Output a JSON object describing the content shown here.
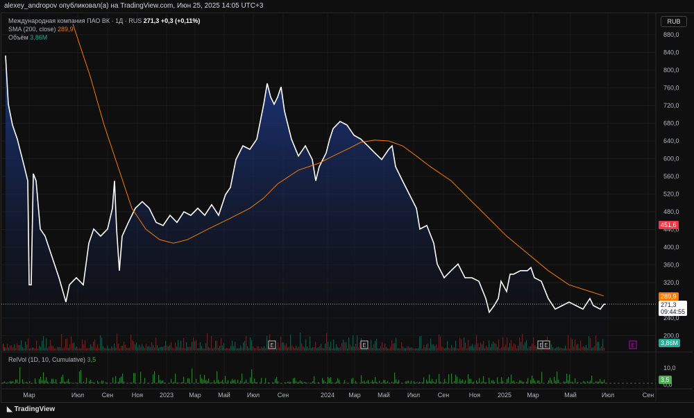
{
  "header": {
    "published": "alexey_andropov опубликовал(а) на TradingView.com, Июн 25, 2025 14:05 UTC+3"
  },
  "legend": {
    "symbol": "Международная компания ПАО ВК · 1Д · RUS",
    "last": "271,3",
    "change": "+0,3 (+0,11%)",
    "sma_label": "SMA (200, close)",
    "sma_value": "289,9",
    "vol_label": "Объём",
    "vol_value": "3,86M",
    "relvol_label": "RelVol (1D, 10, Cumulative)",
    "relvol_value": "3,5"
  },
  "currency": "RUB",
  "tags": {
    "high": "451,6",
    "sma": "289,9",
    "price": "271,3",
    "countdown": "09:44:55",
    "volume": "3,86M",
    "relvol": "3,5",
    "earnings": "E"
  },
  "footer": {
    "brand": "TradingView"
  },
  "colors": {
    "price": "#ffffff",
    "sma": "#f57c00",
    "area_top": "#1e3a8a",
    "high_tag": "#f23645",
    "vol_tag": "#22ab94",
    "relvol_tag": "#4caf50"
  },
  "chart_data": {
    "type": "line",
    "title": "Международная компания ПАО ВК · 1Д",
    "ylim": [
      200,
      900
    ],
    "y_ticks": [
      "880,0",
      "840,0",
      "800,0",
      "760,0",
      "720,0",
      "680,0",
      "640,0",
      "600,0",
      "560,0",
      "520,0",
      "480,0",
      "440,0",
      "400,0",
      "360,0",
      "320,0",
      "240,0",
      "200,0"
    ],
    "relvol_ticks": [
      "10,0",
      "0,0"
    ],
    "x_ticks": [
      {
        "m": 2.1,
        "label": "Мар"
      },
      {
        "m": 5.6,
        "label": "Июл"
      },
      {
        "m": 7.75,
        "label": "Сен"
      },
      {
        "m": 9.9,
        "label": "Ноя"
      },
      {
        "m": 12,
        "label": "2023"
      },
      {
        "m": 14.05,
        "label": "Мар"
      },
      {
        "m": 16.15,
        "label": "Май"
      },
      {
        "m": 18.25,
        "label": "Июл"
      },
      {
        "m": 20.4,
        "label": "Сен"
      },
      {
        "m": 23.6,
        "label": "2024"
      },
      {
        "m": 25.55,
        "label": "Мар"
      },
      {
        "m": 27.65,
        "label": "Май"
      },
      {
        "m": 29.8,
        "label": "Июл"
      },
      {
        "m": 31.95,
        "label": "Сен"
      },
      {
        "m": 34.2,
        "label": "Ноя"
      },
      {
        "m": 36.35,
        "label": "2025"
      },
      {
        "m": 38.4,
        "label": "Мар"
      },
      {
        "m": 41.1,
        "label": "Май"
      },
      {
        "m": 43.8,
        "label": "Июл"
      },
      {
        "m": 46.7,
        "label": "Сен"
      }
    ],
    "series": [
      {
        "name": "Price",
        "values": [
          [
            0.4,
            833
          ],
          [
            0.6,
            723
          ],
          [
            0.9,
            676
          ],
          [
            1.25,
            644
          ],
          [
            1.75,
            582
          ],
          [
            2,
            550
          ],
          [
            2.1,
            315
          ],
          [
            2.25,
            315
          ],
          [
            2.4,
            566
          ],
          [
            2.6,
            550
          ],
          [
            2.9,
            441
          ],
          [
            3.25,
            425
          ],
          [
            3.75,
            378
          ],
          [
            4.25,
            331
          ],
          [
            4.75,
            276
          ],
          [
            5,
            315
          ],
          [
            5.5,
            331
          ],
          [
            6,
            315
          ],
          [
            6.4,
            409
          ],
          [
            6.75,
            441
          ],
          [
            7.25,
            425
          ],
          [
            7.75,
            441
          ],
          [
            8.1,
            488
          ],
          [
            8.25,
            550
          ],
          [
            8.4,
            441
          ],
          [
            8.6,
            347
          ],
          [
            8.8,
            425
          ],
          [
            9.25,
            456
          ],
          [
            9.75,
            488
          ],
          [
            10.25,
            503
          ],
          [
            10.75,
            488
          ],
          [
            11.25,
            456
          ],
          [
            11.75,
            449
          ],
          [
            12.25,
            472
          ],
          [
            12.75,
            456
          ],
          [
            13.25,
            480
          ],
          [
            13.75,
            472
          ],
          [
            14.25,
            488
          ],
          [
            14.75,
            472
          ],
          [
            15.25,
            496
          ],
          [
            15.75,
            472
          ],
          [
            16.25,
            519
          ],
          [
            16.6,
            535
          ],
          [
            17,
            598
          ],
          [
            17.5,
            629
          ],
          [
            18,
            621
          ],
          [
            18.5,
            644
          ],
          [
            19,
            723
          ],
          [
            19.25,
            770
          ],
          [
            19.5,
            739
          ],
          [
            19.75,
            723
          ],
          [
            20,
            739
          ],
          [
            20.25,
            762
          ],
          [
            20.5,
            707
          ],
          [
            21,
            644
          ],
          [
            21.5,
            606
          ],
          [
            22,
            629
          ],
          [
            22.5,
            598
          ],
          [
            22.75,
            550
          ],
          [
            23,
            582
          ],
          [
            23.5,
            613
          ],
          [
            23.75,
            644
          ],
          [
            24,
            668
          ],
          [
            24.5,
            684
          ],
          [
            25,
            676
          ],
          [
            25.5,
            653
          ],
          [
            26,
            644
          ],
          [
            26.5,
            629
          ],
          [
            27,
            613
          ],
          [
            27.5,
            598
          ],
          [
            28,
            621
          ],
          [
            28.25,
            629
          ],
          [
            28.5,
            582
          ],
          [
            29,
            550
          ],
          [
            29.5,
            519
          ],
          [
            30,
            488
          ],
          [
            30.25,
            441
          ],
          [
            30.75,
            449
          ],
          [
            31.25,
            409
          ],
          [
            31.5,
            362
          ],
          [
            32,
            331
          ],
          [
            32.5,
            347
          ],
          [
            33,
            362
          ],
          [
            33.5,
            331
          ],
          [
            34,
            331
          ],
          [
            34.5,
            323
          ],
          [
            35,
            284
          ],
          [
            35.25,
            253
          ],
          [
            35.6,
            268
          ],
          [
            35.9,
            284
          ],
          [
            36.1,
            323
          ],
          [
            36.5,
            300
          ],
          [
            36.75,
            339
          ],
          [
            37,
            339
          ],
          [
            37.5,
            347
          ],
          [
            38,
            347
          ],
          [
            38.25,
            354
          ],
          [
            38.5,
            331
          ],
          [
            39,
            323
          ],
          [
            39.5,
            284
          ],
          [
            40,
            260
          ],
          [
            40.5,
            268
          ],
          [
            41,
            276
          ],
          [
            41.5,
            268
          ],
          [
            42,
            260
          ],
          [
            42.5,
            284
          ],
          [
            42.75,
            268
          ],
          [
            43.25,
            260
          ],
          [
            43.5,
            271
          ],
          [
            43.65,
            271.3
          ]
        ]
      },
      {
        "name": "SMA (200, close)",
        "values": [
          [
            5.25,
            904
          ],
          [
            6.5,
            786
          ],
          [
            7.5,
            676
          ],
          [
            8.5,
            582
          ],
          [
            9.5,
            488
          ],
          [
            10.5,
            441
          ],
          [
            11.5,
            417
          ],
          [
            12.5,
            409
          ],
          [
            13.5,
            417
          ],
          [
            15,
            441
          ],
          [
            16.5,
            464
          ],
          [
            18,
            488
          ],
          [
            19,
            511
          ],
          [
            20,
            543
          ],
          [
            21.5,
            574
          ],
          [
            23,
            590
          ],
          [
            24,
            606
          ],
          [
            25,
            621
          ],
          [
            26,
            637
          ],
          [
            27,
            642
          ],
          [
            28,
            640
          ],
          [
            29,
            629
          ],
          [
            30,
            606
          ],
          [
            31,
            582
          ],
          [
            32.5,
            550
          ],
          [
            34,
            503
          ],
          [
            35,
            472
          ],
          [
            36.5,
            425
          ],
          [
            38,
            386
          ],
          [
            39.5,
            347
          ],
          [
            41,
            315
          ],
          [
            42.5,
            300
          ],
          [
            43.5,
            289.9
          ]
        ]
      }
    ]
  }
}
